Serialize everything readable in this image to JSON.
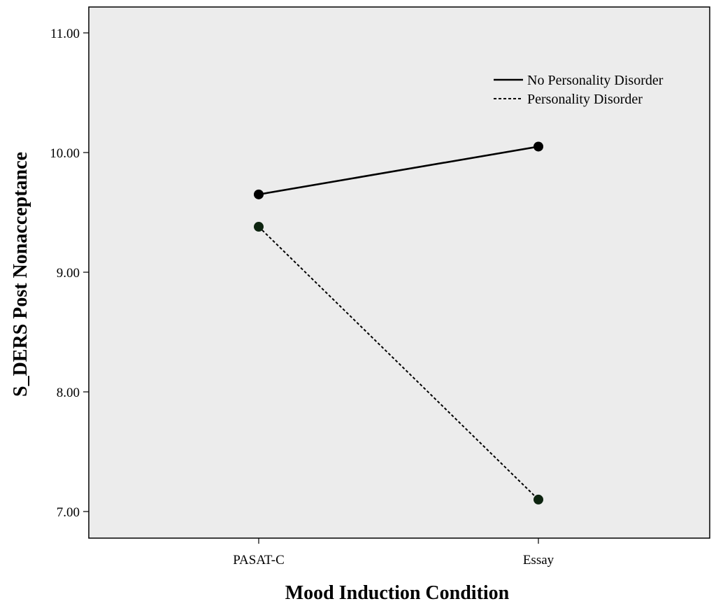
{
  "chart_data": {
    "type": "line",
    "title": "",
    "xlabel": "Mood Induction Condition",
    "ylabel": "S_DERS Post Nonacceptance",
    "categories": [
      "PASAT-C",
      "Essay"
    ],
    "ylim": [
      6.9,
      11.25
    ],
    "yticks": [
      7.0,
      8.0,
      9.0,
      10.0,
      11.0
    ],
    "ytick_labels": [
      "7.00",
      "8.00",
      "9.00",
      "10.00",
      "11.00"
    ],
    "legend_position": "top-right",
    "plot_background": "#ececec",
    "series": [
      {
        "name": "No Personality Disorder",
        "values": [
          9.65,
          10.05
        ],
        "dash": "solid",
        "color": "#000000",
        "marker_color": "#000000"
      },
      {
        "name": "Personality Disorder",
        "values": [
          9.38,
          7.1
        ],
        "dash": "dashed",
        "color": "#000000",
        "marker_color": "#0d2410"
      }
    ]
  }
}
